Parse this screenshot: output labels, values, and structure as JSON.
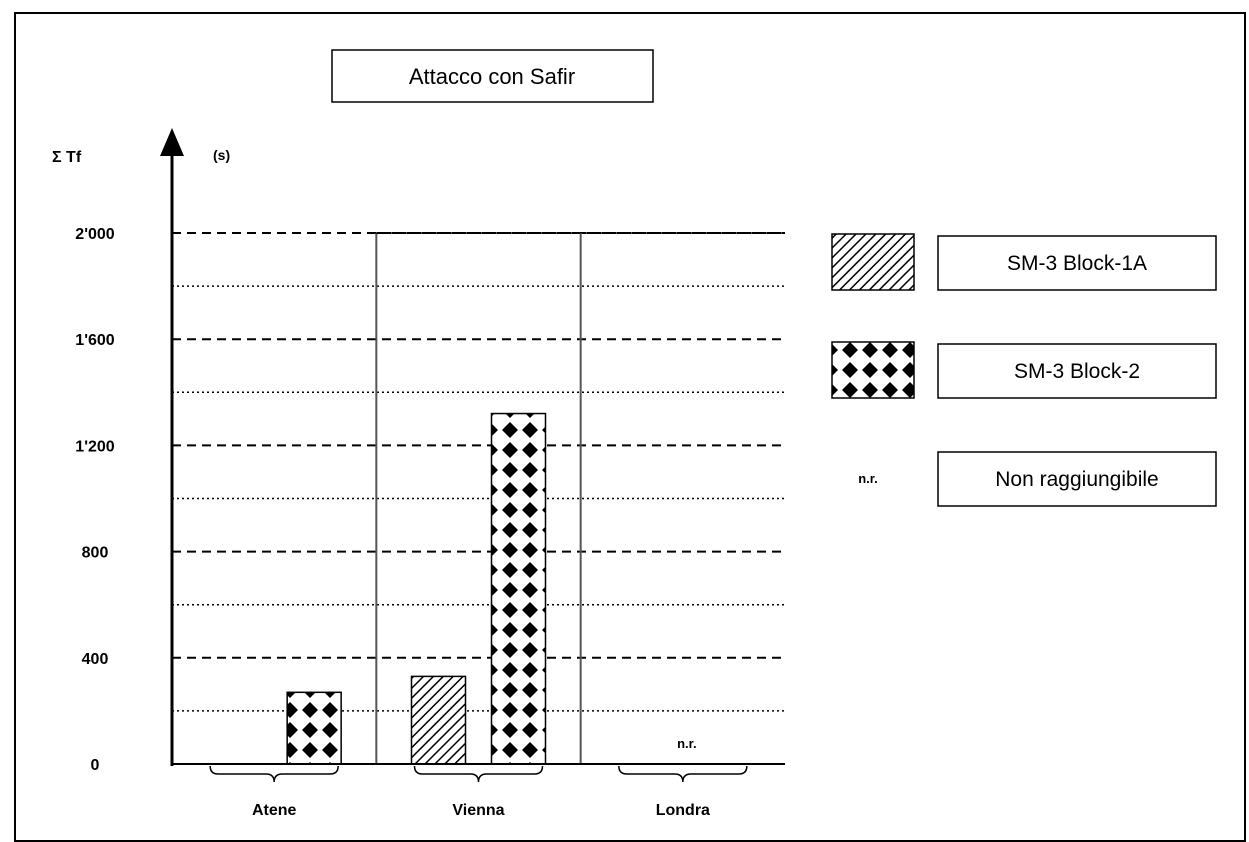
{
  "chart_data": {
    "type": "bar",
    "title": "Attacco con Safir",
    "ylabel": "Σ Tf",
    "yunit": "(s)",
    "ylim": [
      0,
      2000
    ],
    "yticks": [
      0,
      400,
      800,
      1200,
      1600,
      2000
    ],
    "ytick_labels": [
      "0",
      "400",
      "800",
      "1'200",
      "1'600",
      "2'000"
    ],
    "categories": [
      "Atene",
      "Vienna",
      "Londra"
    ],
    "series": [
      {
        "name": "SM-3 Block-1A",
        "values": [
          null,
          330,
          null
        ],
        "pattern": "hatch"
      },
      {
        "name": "SM-3 Block-2",
        "values": [
          270,
          1320,
          null
        ],
        "pattern": "dots"
      }
    ],
    "annotations": [
      {
        "category": "Londra",
        "text": "n.r."
      }
    ],
    "legend": {
      "placement": "right",
      "items": [
        {
          "series": "SM-3 Block-1A",
          "label": "SM-3 Block-1A"
        },
        {
          "series": "SM-3 Block-2",
          "label": "SM-3 Block-2"
        },
        {
          "marker": "n.r.",
          "label": "Non raggiungibile"
        }
      ]
    },
    "grid": true
  }
}
